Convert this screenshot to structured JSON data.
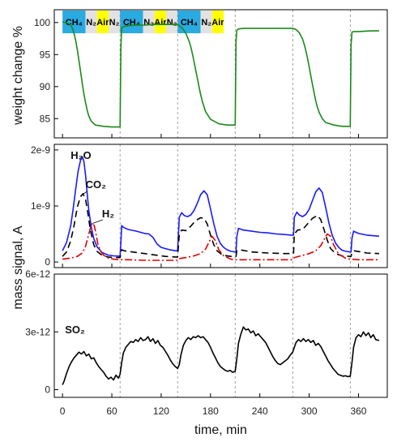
{
  "chart_data": [
    {
      "type": "line",
      "ylabel": "weight change %",
      "ylim": [
        82,
        102
      ],
      "yticks": [
        85,
        90,
        95,
        100
      ],
      "ytick_labels": [
        "85",
        "90",
        "95",
        "100"
      ],
      "series": [
        {
          "color": "#1a8a1a",
          "x": [
            0,
            4,
            8,
            10,
            12,
            14,
            16,
            18,
            20,
            22,
            24,
            26,
            28,
            30,
            32,
            35,
            40,
            50,
            60,
            65,
            70,
            71,
            72,
            75,
            80,
            90,
            100,
            110,
            120,
            130,
            140,
            142,
            146,
            150,
            154,
            156,
            158,
            160,
            162,
            164,
            166,
            168,
            170,
            174,
            180,
            190,
            200,
            205,
            210,
            211,
            212,
            214,
            220,
            240,
            260,
            280,
            284,
            288,
            292,
            294,
            296,
            298,
            300,
            302,
            304,
            306,
            308,
            310,
            312,
            316,
            320,
            330,
            340,
            345,
            350,
            351,
            352,
            354,
            360,
            375,
            385
          ],
          "y": [
            100.1,
            100.0,
            99.8,
            99.6,
            99.1,
            98.3,
            97.2,
            95.8,
            94.1,
            92.3,
            90.5,
            88.9,
            87.5,
            86.3,
            85.4,
            84.6,
            84.0,
            83.8,
            83.7,
            83.7,
            83.7,
            96.0,
            99.2,
            99.4,
            99.5,
            99.6,
            99.6,
            99.7,
            99.7,
            99.7,
            99.7,
            99.5,
            99.1,
            98.3,
            97.1,
            96.2,
            95.1,
            93.9,
            92.6,
            91.3,
            90.0,
            88.8,
            87.7,
            86.1,
            84.9,
            84.2,
            84.0,
            84.0,
            84.0,
            97.0,
            98.8,
            99.0,
            99.1,
            99.1,
            99.1,
            99.1,
            98.9,
            98.4,
            97.4,
            96.6,
            95.6,
            94.4,
            93.1,
            91.7,
            90.3,
            89.0,
            87.8,
            86.8,
            86.0,
            85.0,
            84.4,
            84.0,
            83.8,
            83.8,
            83.8,
            96.5,
            98.5,
            98.6,
            98.6,
            98.7,
            98.7
          ]
        }
      ]
    },
    {
      "type": "line",
      "ylabel": "mass signal, A",
      "ylim": [
        -1e-10,
        2.1e-09
      ],
      "yticks": [
        0,
        1e-09,
        2e-09
      ],
      "ytick_labels": [
        "0",
        "1e-9",
        "2e-9"
      ],
      "annotations": [
        "H₂O",
        "CO₂",
        "H₂"
      ],
      "series": [
        {
          "color": "#1a1aff",
          "dash": "",
          "x": [
            0,
            5,
            10,
            13,
            16,
            19,
            22,
            24,
            26,
            28,
            30,
            32,
            35,
            38,
            42,
            48,
            55,
            62,
            68,
            70,
            71,
            72,
            74,
            80,
            90,
            100,
            105,
            110,
            115,
            120,
            130,
            138,
            140,
            141,
            142,
            145,
            148,
            152,
            156,
            160,
            164,
            168,
            172,
            176,
            180,
            184,
            188,
            192,
            196,
            200,
            205,
            210,
            211,
            212,
            214,
            220,
            230,
            240,
            250,
            260,
            270,
            278,
            280,
            281,
            282,
            285,
            288,
            292,
            296,
            300,
            304,
            308,
            312,
            316,
            320,
            324,
            328,
            332,
            336,
            340,
            345,
            350,
            351,
            352,
            354,
            360,
            370,
            385
          ],
          "y": [
            2e-10,
            3.5e-10,
            6.5e-10,
            9.5e-10,
            1.3e-09,
            1.62e-09,
            1.82e-09,
            1.88e-09,
            1.8e-09,
            1.55e-09,
            1.22e-09,
            9.2e-10,
            6.2e-10,
            4.2e-10,
            2.7e-10,
            1.7e-10,
            1.25e-10,
            1.1e-10,
            1.05e-10,
            1.05e-10,
            3.5e-10,
            6.5e-10,
            6.2e-10,
            5.8e-10,
            5.5e-10,
            5.1e-10,
            5e-10,
            4.4e-10,
            3.2e-10,
            2.6e-10,
            2.2e-10,
            2e-10,
            2e-10,
            4.8e-10,
            8e-10,
            8.8e-10,
            8.3e-10,
            8.1e-10,
            8.4e-10,
            9.2e-10,
            1.05e-09,
            1.2e-09,
            1.27e-09,
            1.2e-09,
            9.5e-10,
            6.8e-10,
            4.6e-10,
            3.3e-10,
            2.6e-10,
            2.2e-10,
            1.9e-10,
            1.8e-10,
            1.8e-10,
            4.5e-10,
            6e-10,
            5.7e-10,
            5.5e-10,
            5.3e-10,
            5.2e-10,
            5e-10,
            4.9e-10,
            4.8e-10,
            4.8e-10,
            4.8e-10,
            8e-10,
            8.9e-10,
            8.4e-10,
            8.1e-10,
            8.5e-10,
            9.4e-10,
            1.1e-09,
            1.25e-09,
            1.32e-09,
            1.24e-09,
            9.8e-10,
            7e-10,
            4.8e-10,
            3.4e-10,
            2.6e-10,
            2.1e-10,
            1.9e-10,
            1.8e-10,
            1.8e-10,
            4.2e-10,
            5.5e-10,
            5.1e-10,
            4.8e-10,
            4.6e-10
          ]
        },
        {
          "color": "#000000",
          "dash": "8,5",
          "x": [
            0,
            5,
            10,
            14,
            18,
            22,
            25,
            28,
            31,
            34,
            38,
            42,
            48,
            55,
            62,
            70,
            71,
            72,
            75,
            85,
            100,
            115,
            125,
            138,
            140,
            141,
            142,
            145,
            150,
            156,
            162,
            168,
            172,
            176,
            180,
            184,
            188,
            195,
            205,
            210,
            211,
            212,
            215,
            230,
            250,
            270,
            280,
            281,
            282,
            286,
            292,
            298,
            304,
            310,
            314,
            318,
            322,
            326,
            332,
            340,
            350,
            351,
            352,
            355,
            370,
            385
          ],
          "y": [
            1e-10,
            1.8e-10,
            3.8e-10,
            6.5e-10,
            9.8e-10,
            1.17e-09,
            1.22e-09,
            1.12e-09,
            8.6e-10,
            5.6e-10,
            3.1e-10,
            1.9e-10,
            1.2e-10,
            9e-11,
            8e-11,
            8e-11,
            1.5e-10,
            2.2e-10,
            2e-10,
            1.8e-10,
            1.5e-10,
            1.2e-10,
            1e-10,
            9e-11,
            9e-11,
            2.8e-10,
            5e-10,
            5.7e-10,
            5.6e-10,
            6.4e-10,
            7.4e-10,
            7.9e-10,
            7.8e-10,
            6.8e-10,
            4.8e-10,
            3.1e-10,
            2e-10,
            1.2e-10,
            1e-10,
            1e-10,
            1e-10,
            2e-10,
            2.2e-10,
            1.8e-10,
            1.6e-10,
            1.5e-10,
            1.5e-10,
            1.5e-10,
            5e-10,
            5.7e-10,
            5.8e-10,
            6.8e-10,
            7.8e-10,
            8.3e-10,
            7.6e-10,
            5.8e-10,
            3.9e-10,
            2.4e-10,
            1.5e-10,
            1.1e-10,
            1e-10,
            1e-10,
            1.8e-10,
            2e-10,
            1.6e-10,
            1.5e-10
          ]
        },
        {
          "color": "#e00000",
          "dash": "9,3,2,3",
          "x": [
            0,
            10,
            18,
            24,
            28,
            32,
            35,
            37,
            39,
            41,
            43,
            46,
            50,
            56,
            62,
            70,
            72,
            80,
            100,
            120,
            138,
            140,
            142,
            150,
            160,
            168,
            174,
            178,
            182,
            186,
            190,
            196,
            205,
            210,
            212,
            220,
            240,
            260,
            278,
            280,
            282,
            290,
            300,
            308,
            314,
            318,
            322,
            326,
            330,
            336,
            345,
            350,
            352,
            360,
            385
          ],
          "y": [
            5e-11,
            7e-11,
            1e-10,
            1.6e-10,
            2.8e-10,
            5e-10,
            6.6e-10,
            7e-10,
            6.3e-10,
            4.8e-10,
            3.2e-10,
            2e-10,
            1.2e-10,
            7e-11,
            5e-11,
            4e-11,
            4e-11,
            4e-11,
            3e-11,
            3e-11,
            3e-11,
            3e-11,
            6e-11,
            8e-11,
            1.1e-10,
            1.5e-10,
            2.3e-10,
            3.5e-10,
            4.6e-10,
            3.8e-10,
            2.2e-10,
            1.1e-10,
            5e-11,
            4e-11,
            4e-11,
            4e-11,
            4e-11,
            4e-11,
            4e-11,
            4e-11,
            8e-11,
            1.1e-10,
            1.5e-10,
            2e-10,
            2.9e-10,
            4e-10,
            5e-10,
            4.6e-10,
            3e-10,
            1.4e-10,
            6e-11,
            5e-11,
            5e-11,
            4e-11,
            4e-11
          ]
        }
      ]
    },
    {
      "type": "line",
      "ylim": [
        -4e-13,
        6e-12
      ],
      "yticks": [
        0,
        3e-12,
        6e-12
      ],
      "ytick_labels": [
        "0",
        "3e-12",
        "6e-12"
      ],
      "annotations": [
        "SO₂"
      ],
      "series": [
        {
          "color": "#000000",
          "dash": "",
          "x": [
            0,
            2,
            5,
            8,
            11,
            14,
            17,
            20,
            23,
            26,
            29,
            32,
            35,
            38,
            41,
            44,
            47,
            50,
            53,
            56,
            59,
            62,
            65,
            68,
            70,
            72,
            74,
            77,
            80,
            83,
            86,
            89,
            92,
            95,
            98,
            101,
            104,
            107,
            110,
            113,
            116,
            119,
            122,
            125,
            128,
            131,
            134,
            137,
            140,
            142,
            144,
            147,
            150,
            153,
            156,
            159,
            162,
            165,
            168,
            171,
            174,
            177,
            180,
            183,
            186,
            189,
            192,
            195,
            198,
            201,
            204,
            207,
            210,
            212,
            214,
            217,
            220,
            223,
            226,
            229,
            232,
            235,
            238,
            241,
            244,
            247,
            250,
            253,
            256,
            259,
            262,
            265,
            268,
            271,
            274,
            277,
            280,
            282,
            284,
            287,
            290,
            293,
            296,
            299,
            302,
            305,
            308,
            311,
            314,
            317,
            320,
            323,
            326,
            329,
            332,
            335,
            338,
            341,
            344,
            347,
            350,
            352,
            354,
            357,
            360,
            363,
            366,
            369,
            372,
            375,
            378,
            381,
            385
          ],
          "y": [
            2.5e-13,
            4.5e-13,
            8.5e-13,
            1.2e-12,
            1.45e-12,
            1.65e-12,
            1.8e-12,
            1.95e-12,
            1.85e-12,
            1.98e-12,
            1.75e-12,
            1.85e-12,
            1.6e-12,
            1.65e-12,
            1.4e-12,
            1.2e-12,
            1.05e-12,
            9e-13,
            7e-13,
            5.5e-13,
            6.5e-13,
            5e-13,
            7.5e-13,
            6e-13,
            8e-13,
            1.4e-12,
            1.9e-12,
            2.2e-12,
            2.35e-12,
            2.5e-12,
            2.45e-12,
            2.6e-12,
            2.5e-12,
            2.7e-12,
            2.55e-12,
            2.6e-12,
            2.75e-12,
            2.5e-12,
            2.65e-12,
            2.4e-12,
            2.55e-12,
            2.3e-12,
            2.2e-12,
            2e-12,
            1.8e-12,
            1.55e-12,
            1.35e-12,
            1.2e-12,
            1.1e-12,
            1.3e-12,
            1.8e-12,
            2.3e-12,
            2.55e-12,
            2.7e-12,
            2.6e-12,
            2.75e-12,
            2.7e-12,
            2.8e-12,
            2.7e-12,
            2.75e-12,
            2.6e-12,
            2.45e-12,
            2.2e-12,
            1.9e-12,
            1.65e-12,
            1.4e-12,
            1.2e-12,
            1.1e-12,
            1e-12,
            9.5e-13,
            1e-12,
            9e-13,
            9.5e-13,
            1.6e-12,
            2.4e-12,
            2.9e-12,
            3.25e-12,
            3.1e-12,
            3.15e-12,
            2.95e-12,
            3.05e-12,
            2.8e-12,
            2.9e-12,
            2.75e-12,
            2.6e-12,
            2.45e-12,
            2.2e-12,
            1.95e-12,
            1.7e-12,
            1.5e-12,
            1.35e-12,
            1.3e-12,
            1.4e-12,
            1.5e-12,
            1.6e-12,
            1.8e-12,
            1.95e-12,
            2.2e-12,
            2.45e-12,
            2.6e-12,
            2.5e-12,
            2.65e-12,
            2.5e-12,
            2.6e-12,
            2.45e-12,
            2.55e-12,
            2.3e-12,
            2.4e-12,
            2.25e-12,
            2e-12,
            1.75e-12,
            1.5e-12,
            1.3e-12,
            1.1e-12,
            9.5e-13,
            8e-13,
            7.5e-13,
            7e-13,
            7.2e-13,
            6.8e-13,
            7e-13,
            1.4e-12,
            2.2e-12,
            2.7e-12,
            2.85e-12,
            2.75e-12,
            3e-12,
            2.8e-12,
            2.95e-12,
            2.7e-12,
            2.85e-12,
            2.6e-12,
            2.55e-12
          ]
        }
      ]
    }
  ],
  "shared_x": {
    "label": "time, min",
    "xlim": [
      -10,
      395
    ],
    "ticks": [
      0,
      60,
      120,
      180,
      240,
      300,
      360
    ],
    "tick_labels": [
      "0",
      "60",
      "120",
      "180",
      "240",
      "300",
      "360"
    ],
    "phase_boundaries": [
      70,
      140,
      210,
      280,
      350
    ]
  },
  "shared_ylabel": "mass signal, A",
  "phase_bar": [
    {
      "label": "CH₄",
      "start": 0,
      "end": 28,
      "color": "#29aae1"
    },
    {
      "label": "N₂",
      "start": 28,
      "end": 42,
      "color": "#e2e2e2"
    },
    {
      "label": "Air",
      "start": 42,
      "end": 56,
      "color": "#ffff00"
    },
    {
      "label": "N₂",
      "start": 56,
      "end": 70,
      "color": "#e2e2e2"
    },
    {
      "label": "CH₄",
      "start": 70,
      "end": 98,
      "color": "#29aae1"
    },
    {
      "label": "N₂",
      "start": 98,
      "end": 112,
      "color": "#e2e2e2"
    },
    {
      "label": "Air",
      "start": 112,
      "end": 126,
      "color": "#ffff00"
    },
    {
      "label": "N₂",
      "start": 126,
      "end": 140,
      "color": "#e2e2e2"
    },
    {
      "label": "CH₄",
      "start": 140,
      "end": 168,
      "color": "#29aae1"
    },
    {
      "label": "N₂",
      "start": 168,
      "end": 182,
      "color": "#e2e2e2"
    },
    {
      "label": "Air",
      "start": 182,
      "end": 196,
      "color": "#ffff00"
    }
  ]
}
